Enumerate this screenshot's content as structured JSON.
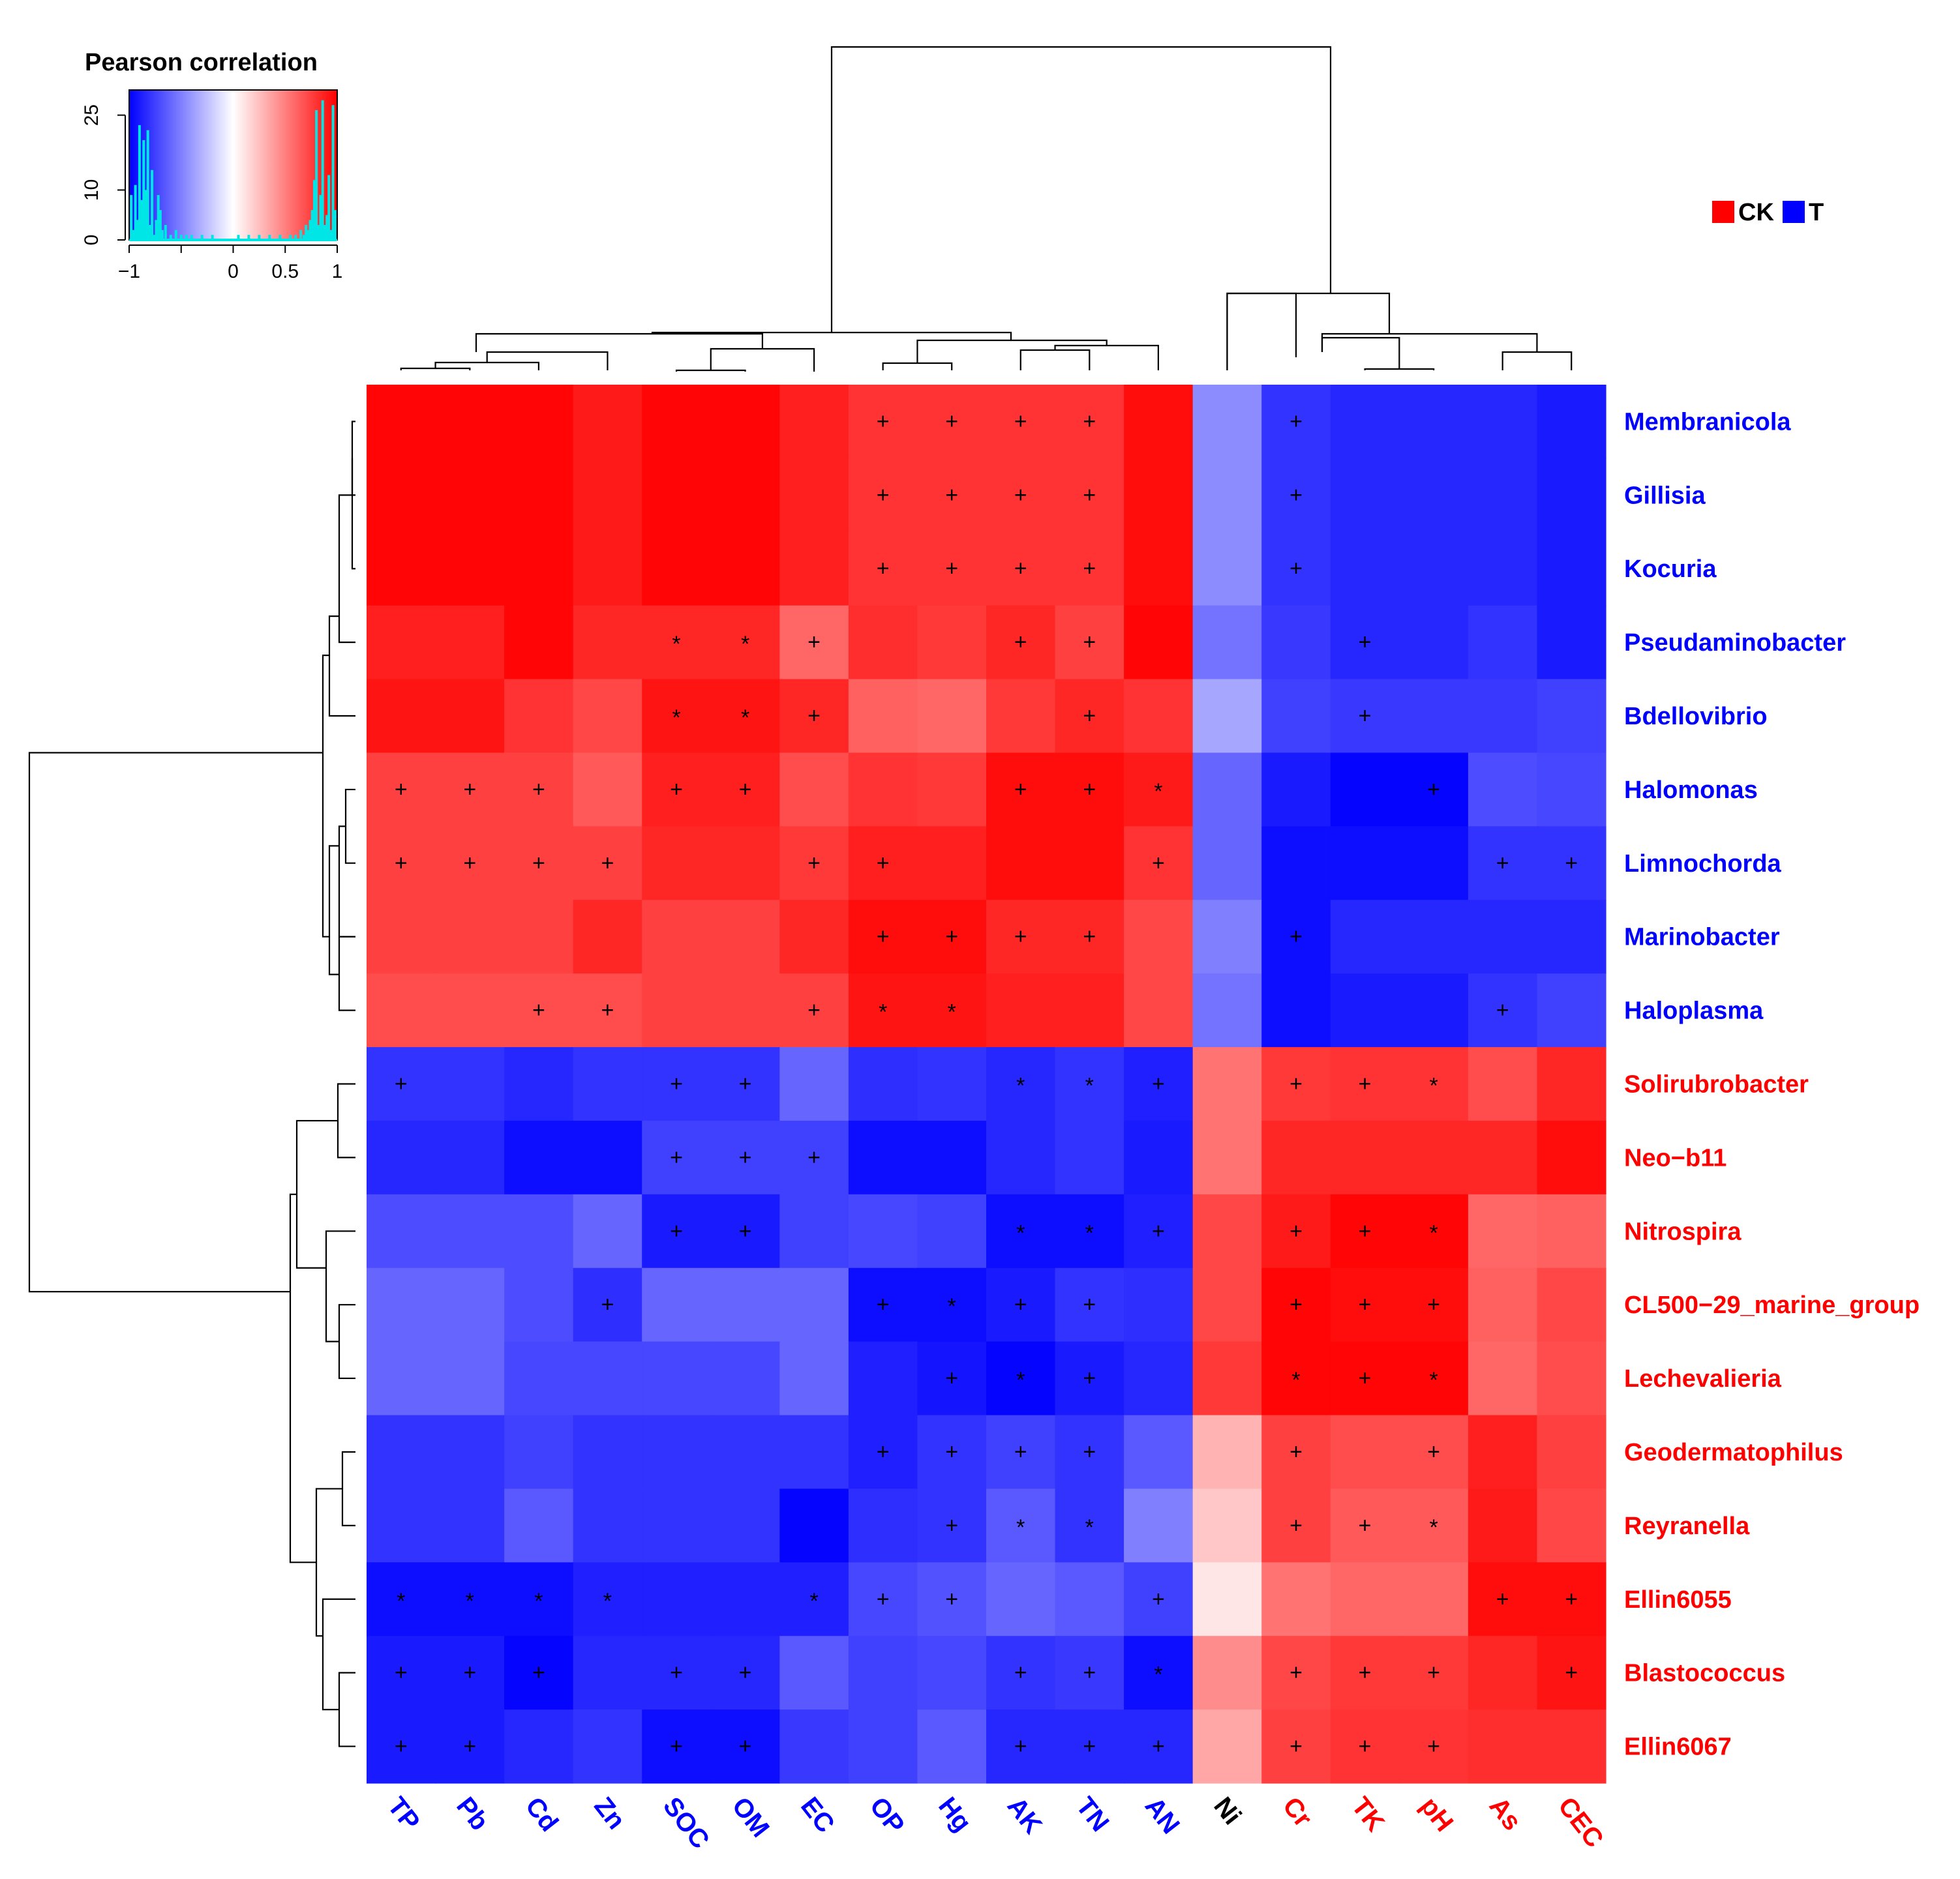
{
  "chart_data": {
    "type": "heatmap",
    "title": "Pearson correlation",
    "color_scale": {
      "low": "#0000ff",
      "mid": "#ffffff",
      "high": "#ff0000",
      "range": [
        -1,
        1
      ],
      "ticks": [
        "−1",
        "0",
        "0.5",
        "1"
      ],
      "tick_values": [
        -1,
        0,
        0.5,
        1
      ]
    },
    "histogram": {
      "color": "#00e5e5",
      "y_ticks": [
        "0",
        "10",
        "25"
      ],
      "y_tick_values": [
        0,
        10,
        25
      ],
      "y_max": 29,
      "bin_values": [
        -0.98,
        -0.96,
        -0.94,
        -0.92,
        -0.9,
        -0.88,
        -0.86,
        -0.84,
        -0.82,
        -0.8,
        -0.78,
        -0.76,
        -0.74,
        -0.72,
        -0.7,
        -0.68,
        -0.65,
        -0.6,
        -0.55,
        -0.5,
        -0.45,
        -0.4,
        -0.3,
        -0.2,
        0.05,
        0.15,
        0.25,
        0.35,
        0.45,
        0.55,
        0.6,
        0.65,
        0.68,
        0.7,
        0.72,
        0.74,
        0.76,
        0.78,
        0.8,
        0.82,
        0.84,
        0.86,
        0.88,
        0.9,
        0.92,
        0.94,
        0.96,
        0.98
      ],
      "counts": [
        9,
        2,
        11,
        4,
        23,
        8,
        20,
        10,
        22,
        3,
        14,
        1,
        4,
        9,
        6,
        2,
        3,
        1,
        2,
        1,
        1,
        1,
        1,
        1,
        1,
        1,
        1,
        1,
        1,
        1,
        1,
        2,
        1,
        3,
        2,
        4,
        6,
        12,
        26,
        3,
        9,
        28,
        3,
        5,
        13,
        2,
        27,
        6
      ]
    },
    "group_legend": [
      {
        "label": "CK",
        "color": "#ff0000"
      },
      {
        "label": "T",
        "color": "#0000ff"
      }
    ],
    "rows": [
      {
        "label": "Membranicola",
        "group": "T"
      },
      {
        "label": "Gillisia",
        "group": "T"
      },
      {
        "label": "Kocuria",
        "group": "T"
      },
      {
        "label": "Pseudaminobacter",
        "group": "T"
      },
      {
        "label": "Bdellovibrio",
        "group": "T"
      },
      {
        "label": "Halomonas",
        "group": "T"
      },
      {
        "label": "Limnochorda",
        "group": "T"
      },
      {
        "label": "Marinobacter",
        "group": "T"
      },
      {
        "label": "Haloplasma",
        "group": "T"
      },
      {
        "label": "Solirubrobacter",
        "group": "CK"
      },
      {
        "label": "Neo−b11",
        "group": "CK"
      },
      {
        "label": "Nitrospira",
        "group": "CK"
      },
      {
        "label": "CL500−29_marine_group",
        "group": "CK"
      },
      {
        "label": "Lechevalieria",
        "group": "CK"
      },
      {
        "label": "Geodermatophilus",
        "group": "CK"
      },
      {
        "label": "Reyranella",
        "group": "CK"
      },
      {
        "label": "Ellin6055",
        "group": "CK"
      },
      {
        "label": "Blastococcus",
        "group": "CK"
      },
      {
        "label": "Ellin6067",
        "group": "CK"
      }
    ],
    "columns": [
      {
        "label": "TP",
        "group": "T"
      },
      {
        "label": "Pb",
        "group": "T"
      },
      {
        "label": "Cd",
        "group": "T"
      },
      {
        "label": "Zn",
        "group": "T"
      },
      {
        "label": "SOC",
        "group": "T"
      },
      {
        "label": "OM",
        "group": "T"
      },
      {
        "label": "EC",
        "group": "T"
      },
      {
        "label": "OP",
        "group": "T"
      },
      {
        "label": "Hg",
        "group": "T"
      },
      {
        "label": "AK",
        "group": "T"
      },
      {
        "label": "TN",
        "group": "T"
      },
      {
        "label": "AN",
        "group": "T"
      },
      {
        "label": "Ni",
        "group": "none"
      },
      {
        "label": "Cr",
        "group": "CK"
      },
      {
        "label": "TK",
        "group": "CK"
      },
      {
        "label": "pH",
        "group": "CK"
      },
      {
        "label": "As",
        "group": "CK"
      },
      {
        "label": "CEC",
        "group": "CK"
      }
    ],
    "values": [
      [
        0.98,
        0.98,
        0.98,
        0.9,
        0.98,
        0.98,
        0.88,
        0.8,
        0.8,
        0.8,
        0.8,
        0.95,
        -0.45,
        -0.8,
        -0.85,
        -0.85,
        -0.85,
        -0.9
      ],
      [
        0.98,
        0.98,
        0.98,
        0.9,
        0.98,
        0.98,
        0.88,
        0.8,
        0.8,
        0.8,
        0.8,
        0.95,
        -0.45,
        -0.8,
        -0.85,
        -0.85,
        -0.85,
        -0.9
      ],
      [
        0.98,
        0.98,
        0.98,
        0.9,
        0.98,
        0.98,
        0.88,
        0.8,
        0.8,
        0.8,
        0.8,
        0.95,
        -0.45,
        -0.8,
        -0.85,
        -0.85,
        -0.85,
        -0.9
      ],
      [
        0.88,
        0.88,
        0.98,
        0.85,
        0.85,
        0.85,
        0.6,
        0.82,
        0.78,
        0.85,
        0.75,
        0.98,
        -0.55,
        -0.78,
        -0.85,
        -0.85,
        -0.8,
        -0.9
      ],
      [
        0.92,
        0.92,
        0.8,
        0.72,
        0.92,
        0.92,
        0.85,
        0.62,
        0.6,
        0.78,
        0.85,
        0.8,
        -0.35,
        -0.75,
        -0.78,
        -0.78,
        -0.78,
        -0.75
      ],
      [
        0.75,
        0.75,
        0.75,
        0.65,
        0.88,
        0.88,
        0.7,
        0.8,
        0.78,
        0.95,
        0.95,
        0.9,
        -0.6,
        -0.9,
        -0.98,
        -0.98,
        -0.7,
        -0.72
      ],
      [
        0.75,
        0.75,
        0.75,
        0.75,
        0.85,
        0.85,
        0.78,
        0.88,
        0.88,
        0.95,
        0.95,
        0.8,
        -0.6,
        -0.95,
        -0.95,
        -0.95,
        -0.8,
        -0.8
      ],
      [
        0.75,
        0.75,
        0.75,
        0.85,
        0.75,
        0.75,
        0.85,
        0.95,
        0.95,
        0.85,
        0.85,
        0.72,
        -0.5,
        -0.95,
        -0.85,
        -0.85,
        -0.85,
        -0.85
      ],
      [
        0.7,
        0.7,
        0.7,
        0.7,
        0.75,
        0.75,
        0.75,
        0.92,
        0.92,
        0.88,
        0.88,
        0.72,
        -0.55,
        -0.95,
        -0.9,
        -0.9,
        -0.8,
        -0.75
      ],
      [
        -0.8,
        -0.8,
        -0.85,
        -0.8,
        -0.8,
        -0.8,
        -0.6,
        -0.82,
        -0.8,
        -0.85,
        -0.8,
        -0.88,
        0.55,
        0.78,
        0.8,
        0.8,
        0.7,
        0.85
      ],
      [
        -0.85,
        -0.85,
        -0.95,
        -0.95,
        -0.75,
        -0.75,
        -0.75,
        -0.95,
        -0.95,
        -0.85,
        -0.8,
        -0.9,
        0.55,
        0.85,
        0.85,
        0.85,
        0.85,
        0.95
      ],
      [
        -0.7,
        -0.7,
        -0.7,
        -0.6,
        -0.9,
        -0.9,
        -0.75,
        -0.72,
        -0.75,
        -0.95,
        -0.95,
        -0.88,
        0.72,
        0.9,
        0.98,
        0.98,
        0.6,
        0.62
      ],
      [
        -0.6,
        -0.6,
        -0.7,
        -0.82,
        -0.6,
        -0.6,
        -0.6,
        -0.95,
        -0.95,
        -0.9,
        -0.8,
        -0.82,
        0.72,
        0.98,
        0.95,
        0.95,
        0.62,
        0.72
      ],
      [
        -0.6,
        -0.6,
        -0.72,
        -0.72,
        -0.72,
        -0.72,
        -0.6,
        -0.88,
        -0.92,
        -0.98,
        -0.9,
        -0.85,
        0.78,
        0.98,
        0.98,
        0.98,
        0.6,
        0.7
      ],
      [
        -0.8,
        -0.8,
        -0.75,
        -0.8,
        -0.8,
        -0.8,
        -0.8,
        -0.88,
        -0.8,
        -0.75,
        -0.8,
        -0.65,
        0.3,
        0.75,
        0.7,
        0.7,
        0.88,
        0.75
      ],
      [
        -0.8,
        -0.8,
        -0.65,
        -0.8,
        -0.8,
        -0.8,
        -0.98,
        -0.82,
        -0.8,
        -0.65,
        -0.8,
        -0.5,
        0.22,
        0.75,
        0.65,
        0.65,
        0.9,
        0.72
      ],
      [
        -0.95,
        -0.95,
        -0.95,
        -0.88,
        -0.88,
        -0.88,
        -0.88,
        -0.72,
        -0.68,
        -0.6,
        -0.65,
        -0.75,
        0.1,
        0.55,
        0.6,
        0.6,
        0.95,
        0.95
      ],
      [
        -0.9,
        -0.9,
        -0.98,
        -0.85,
        -0.85,
        -0.85,
        -0.65,
        -0.75,
        -0.72,
        -0.8,
        -0.78,
        -0.95,
        0.45,
        0.72,
        0.78,
        0.78,
        0.85,
        0.92
      ],
      [
        -0.9,
        -0.9,
        -0.85,
        -0.8,
        -0.95,
        -0.95,
        -0.78,
        -0.75,
        -0.65,
        -0.85,
        -0.85,
        -0.85,
        0.35,
        0.75,
        0.8,
        0.8,
        0.82,
        0.82
      ]
    ],
    "significance": [
      [
        "",
        "",
        "",
        "",
        "",
        "",
        "",
        "+",
        "+",
        "+",
        "+",
        "",
        "",
        "+",
        "",
        "",
        "",
        ""
      ],
      [
        "",
        "",
        "",
        "",
        "",
        "",
        "",
        "+",
        "+",
        "+",
        "+",
        "",
        "",
        "+",
        "",
        "",
        "",
        ""
      ],
      [
        "",
        "",
        "",
        "",
        "",
        "",
        "",
        "+",
        "+",
        "+",
        "+",
        "",
        "",
        "+",
        "",
        "",
        "",
        ""
      ],
      [
        "",
        "",
        "",
        "",
        "*",
        "*",
        "+",
        "",
        "",
        "+",
        "+",
        "",
        "",
        "",
        "+",
        "",
        "",
        ""
      ],
      [
        "",
        "",
        "",
        "",
        "*",
        "*",
        "+",
        "",
        "",
        "",
        "+",
        "",
        "",
        "",
        "+",
        "",
        "",
        ""
      ],
      [
        "+",
        "+",
        "+",
        "",
        "+",
        "+",
        "",
        "",
        "",
        "+",
        "+",
        "*",
        "",
        "",
        "",
        "+",
        "",
        ""
      ],
      [
        "+",
        "+",
        "+",
        "+",
        "",
        "",
        "+",
        "+",
        "",
        "",
        "",
        "+",
        "",
        "",
        "",
        "",
        "+",
        "+"
      ],
      [
        "",
        "",
        "",
        "",
        "",
        "",
        "",
        "+",
        "+",
        "+",
        "+",
        "",
        "",
        "+",
        "",
        "",
        "",
        ""
      ],
      [
        "",
        "",
        "+",
        "+",
        "",
        "",
        "+",
        "*",
        "*",
        "",
        "",
        "",
        "",
        "",
        "",
        "",
        "+",
        ""
      ],
      [
        "+",
        "",
        "",
        "",
        "+",
        "+",
        "",
        "",
        "",
        "*",
        "*",
        "+",
        "",
        "+",
        "+",
        "*",
        "",
        ""
      ],
      [
        "",
        "",
        "",
        "",
        "+",
        "+",
        "+",
        "",
        "",
        "",
        "",
        "",
        "",
        "",
        "",
        "",
        "",
        ""
      ],
      [
        "",
        "",
        "",
        "",
        "+",
        "+",
        "",
        "",
        "",
        "*",
        "*",
        "+",
        "",
        "+",
        "+",
        "*",
        "",
        ""
      ],
      [
        "",
        "",
        "",
        "+",
        "",
        "",
        "",
        "+",
        "*",
        "+",
        "+",
        "",
        "",
        "+",
        "+",
        "+",
        "",
        ""
      ],
      [
        "",
        "",
        "",
        "",
        "",
        "",
        "",
        "",
        "+",
        "*",
        "+",
        "",
        "",
        "*",
        "+",
        "*",
        "",
        ""
      ],
      [
        "",
        "",
        "",
        "",
        "",
        "",
        "",
        "+",
        "+",
        "+",
        "+",
        "",
        "",
        "+",
        "",
        "+",
        "",
        ""
      ],
      [
        "",
        "",
        "",
        "",
        "",
        "",
        "",
        "",
        "+",
        "*",
        "*",
        "",
        "",
        "+",
        "+",
        "*",
        "",
        ""
      ],
      [
        "*",
        "*",
        "*",
        "*",
        "",
        "",
        "*",
        "+",
        "+",
        "",
        "",
        "+",
        "",
        "",
        "",
        "",
        "+",
        "+"
      ],
      [
        "+",
        "+",
        "+",
        "",
        "+",
        "+",
        "",
        "",
        "",
        "+",
        "+",
        "*",
        "",
        "+",
        "+",
        "+",
        "",
        "+"
      ],
      [
        "+",
        "+",
        "",
        "",
        "+",
        "+",
        "",
        "",
        "",
        "+",
        "+",
        "+",
        "",
        "+",
        "+",
        "+",
        "",
        ""
      ]
    ]
  }
}
